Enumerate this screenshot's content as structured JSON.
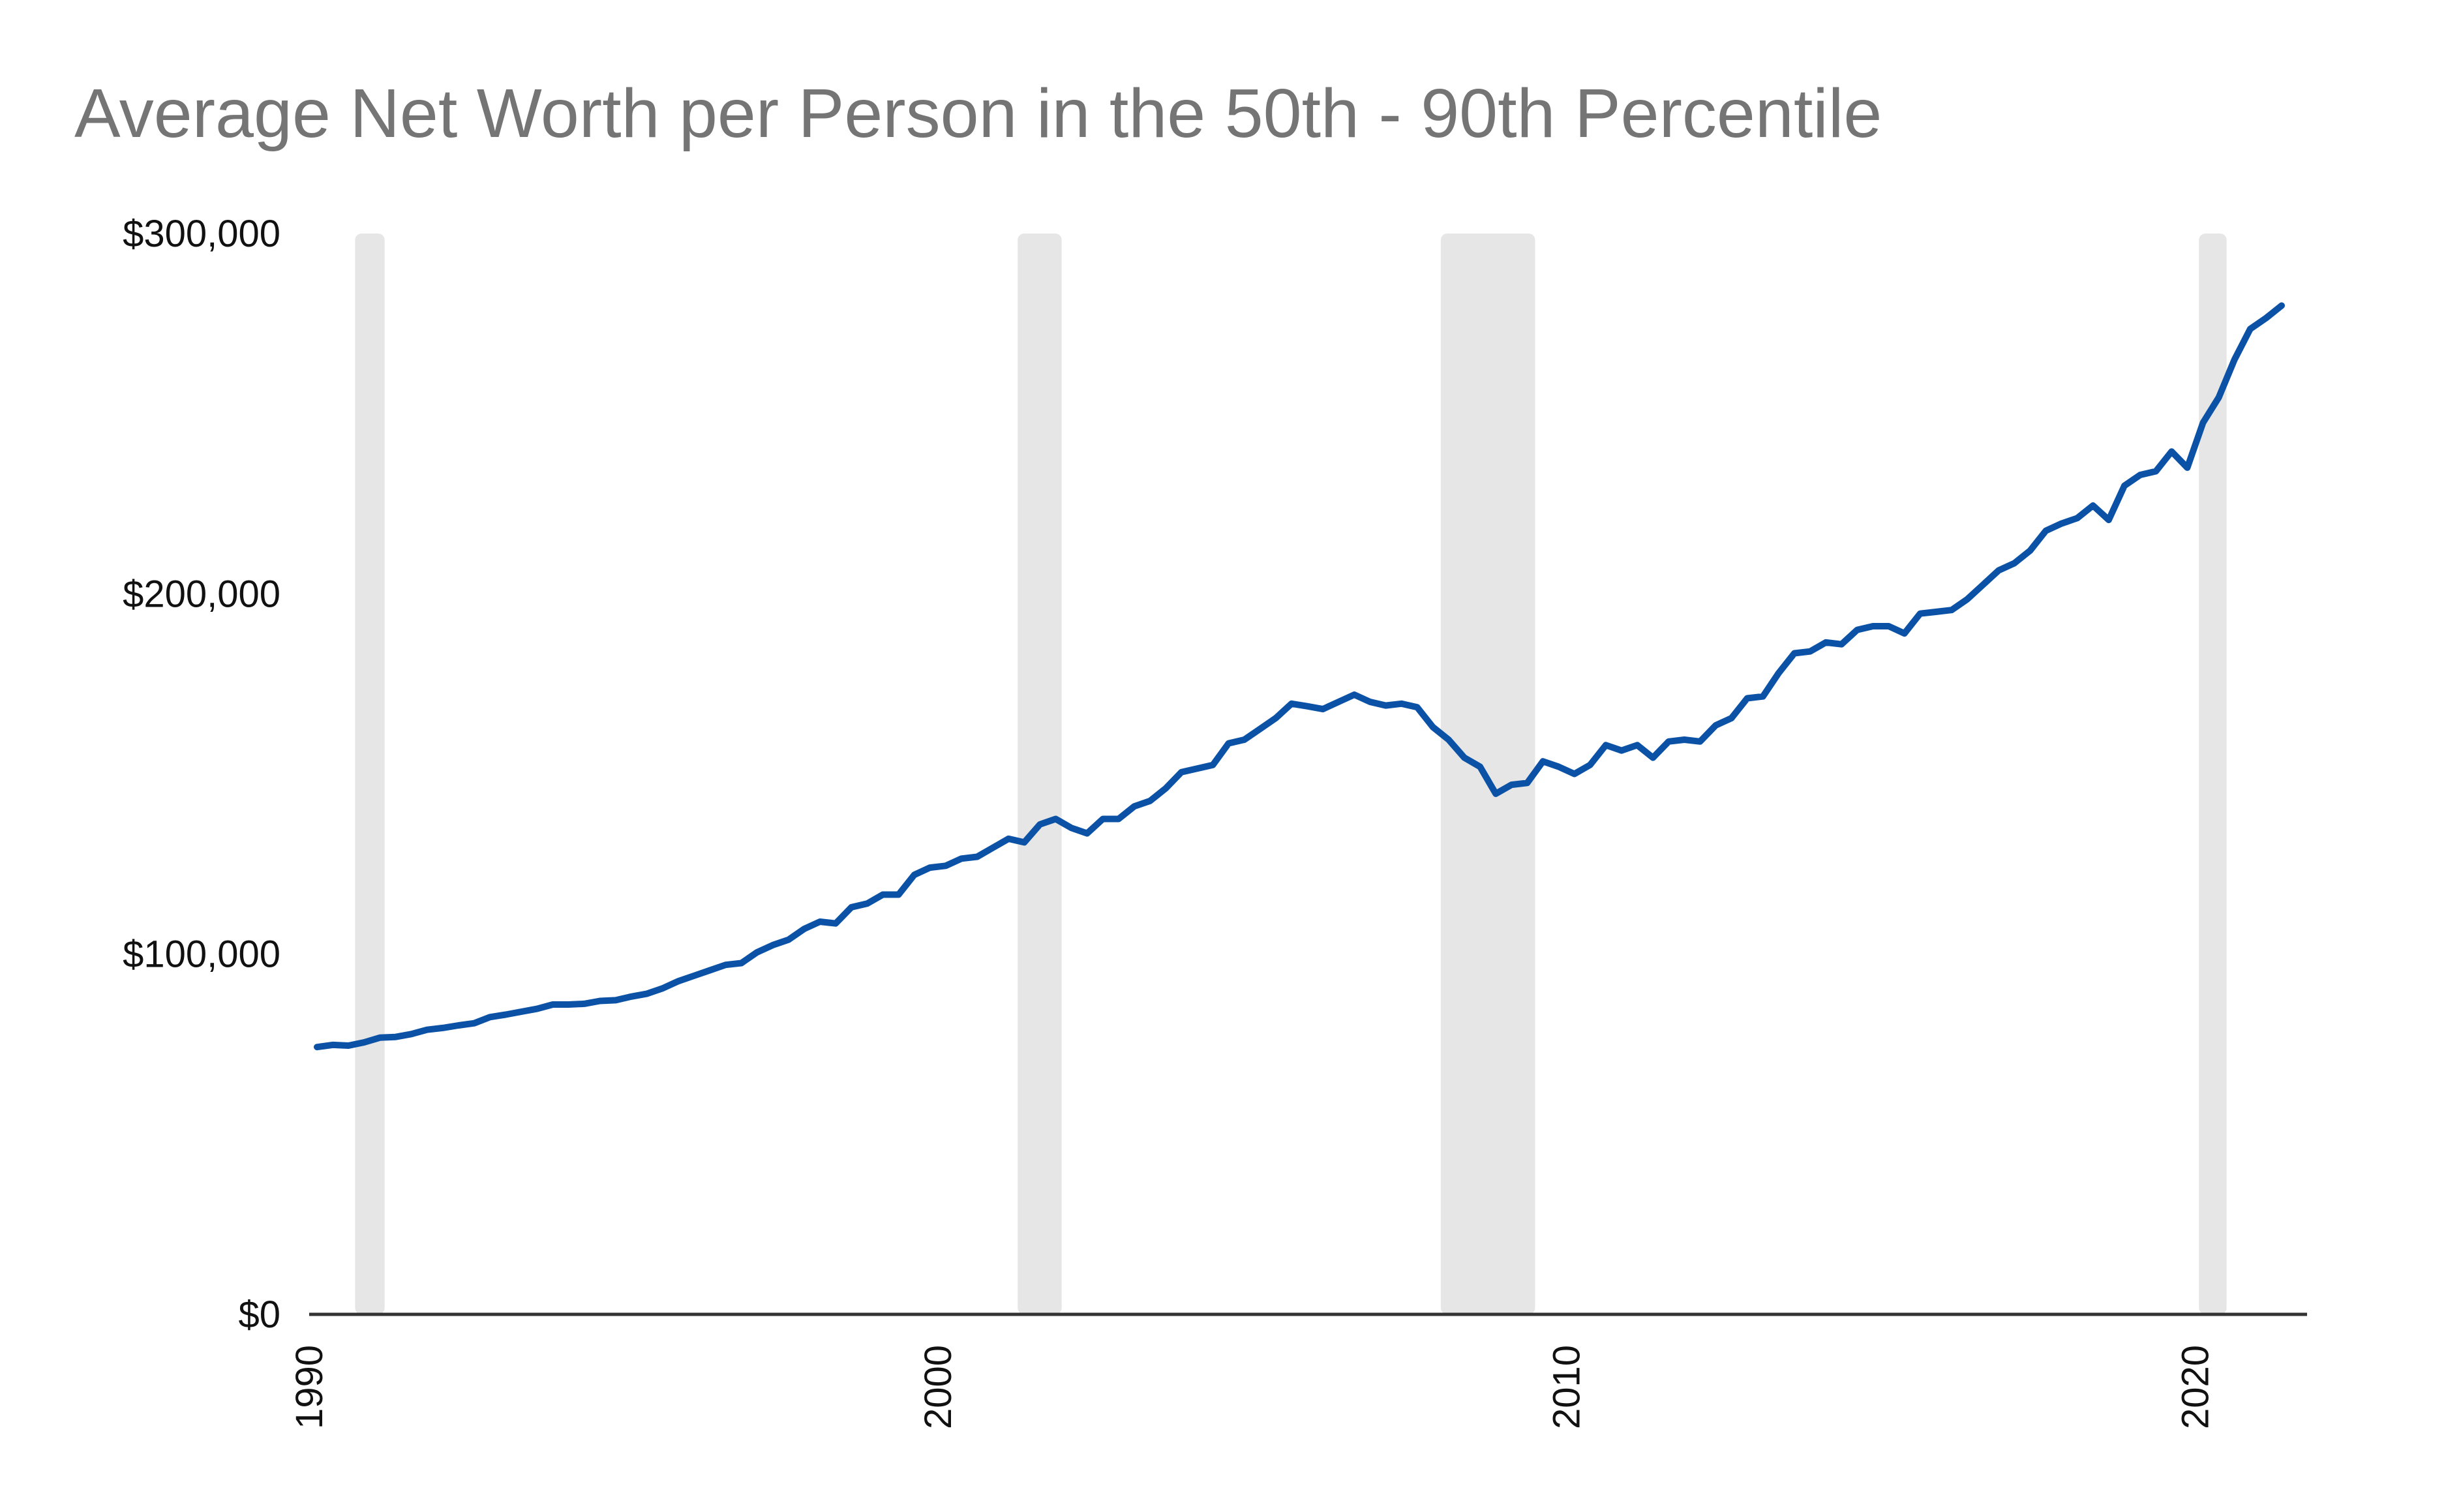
{
  "chart_data": {
    "type": "line",
    "title": "Average Net Worth per Person in the 50th - 90th Percentile",
    "x": [
      1990.125,
      1990.375,
      1990.625,
      1990.875,
      1991.125,
      1991.375,
      1991.625,
      1991.875,
      1992.125,
      1992.375,
      1992.625,
      1992.875,
      1993.125,
      1993.375,
      1993.625,
      1993.875,
      1994.125,
      1994.375,
      1994.625,
      1994.875,
      1995.125,
      1995.375,
      1995.625,
      1995.875,
      1996.125,
      1996.375,
      1996.625,
      1996.875,
      1997.125,
      1997.375,
      1997.625,
      1997.875,
      1998.125,
      1998.375,
      1998.625,
      1998.875,
      1999.125,
      1999.375,
      1999.625,
      1999.875,
      2000.125,
      2000.375,
      2000.625,
      2000.875,
      2001.125,
      2001.375,
      2001.625,
      2001.875,
      2002.125,
      2002.375,
      2002.625,
      2002.875,
      2003.125,
      2003.375,
      2003.625,
      2003.875,
      2004.125,
      2004.375,
      2004.625,
      2004.875,
      2005.125,
      2005.375,
      2005.625,
      2005.875,
      2006.125,
      2006.375,
      2006.625,
      2006.875,
      2007.125,
      2007.375,
      2007.625,
      2007.875,
      2008.125,
      2008.375,
      2008.625,
      2008.875,
      2009.125,
      2009.375,
      2009.625,
      2009.875,
      2010.125,
      2010.375,
      2010.625,
      2010.875,
      2011.125,
      2011.375,
      2011.625,
      2011.875,
      2012.125,
      2012.375,
      2012.625,
      2012.875,
      2013.125,
      2013.375,
      2013.625,
      2013.875,
      2014.125,
      2014.375,
      2014.625,
      2014.875,
      2015.125,
      2015.375,
      2015.625,
      2015.875,
      2016.125,
      2016.375,
      2016.625,
      2016.875,
      2017.125,
      2017.375,
      2017.625,
      2017.875,
      2018.125,
      2018.375,
      2018.625,
      2018.875,
      2019.125,
      2019.375,
      2019.625,
      2019.875,
      2020.125,
      2020.375,
      2020.625,
      2020.875,
      2021.125,
      2021.375
    ],
    "series": [
      {
        "color": "#0b52a6",
        "values": [
          74200,
          74800,
          74600,
          75500,
          76800,
          77000,
          77800,
          79000,
          79500,
          80200,
          80800,
          82500,
          83200,
          84000,
          84800,
          86000,
          86000,
          86200,
          87000,
          87200,
          88200,
          89000,
          90500,
          92500,
          94000,
          95500,
          97000,
          97500,
          100500,
          102500,
          104000,
          107000,
          109000,
          108500,
          113000,
          114000,
          116500,
          116500,
          122000,
          124000,
          124500,
          126500,
          127000,
          129500,
          132000,
          131000,
          136000,
          137500,
          135000,
          133500,
          137500,
          137500,
          141000,
          142500,
          146000,
          150500,
          151500,
          152500,
          158500,
          159500,
          162500,
          165500,
          169500,
          168800,
          168000,
          170000,
          172000,
          170000,
          169000,
          169500,
          168500,
          163000,
          159500,
          154500,
          152000,
          144500,
          147000,
          147500,
          153500,
          152000,
          150000,
          152500,
          158000,
          156500,
          158000,
          154500,
          159000,
          159500,
          159000,
          163500,
          165500,
          171000,
          171500,
          178000,
          183500,
          184000,
          186500,
          186000,
          190000,
          191000,
          191000,
          189000,
          194500,
          195000,
          195500,
          198500,
          202500,
          206500,
          208500,
          212000,
          217500,
          219500,
          221000,
          224500,
          220500,
          230000,
          233000,
          234000,
          239500,
          235000,
          247500,
          254500,
          265000,
          273500,
          276500,
          280000
        ]
      }
    ],
    "shaded_ranges": [
      [
        1990.73,
        1991.2
      ],
      [
        2001.27,
        2001.97
      ],
      [
        2008.0,
        2009.5
      ],
      [
        2020.06,
        2020.5
      ]
    ],
    "shade_color": "#e6e6e6",
    "xlim": [
      1990,
      2021.78
    ],
    "xticks": [
      1990,
      2000,
      2010,
      2020
    ],
    "ylim": [
      0,
      300000
    ],
    "yticks": [
      {
        "value": 0,
        "label": "$0"
      },
      {
        "value": 100000,
        "label": "$100,000"
      },
      {
        "value": 200000,
        "label": "$200,000"
      },
      {
        "value": 300000,
        "label": "$300,000"
      }
    ],
    "grid": false
  }
}
